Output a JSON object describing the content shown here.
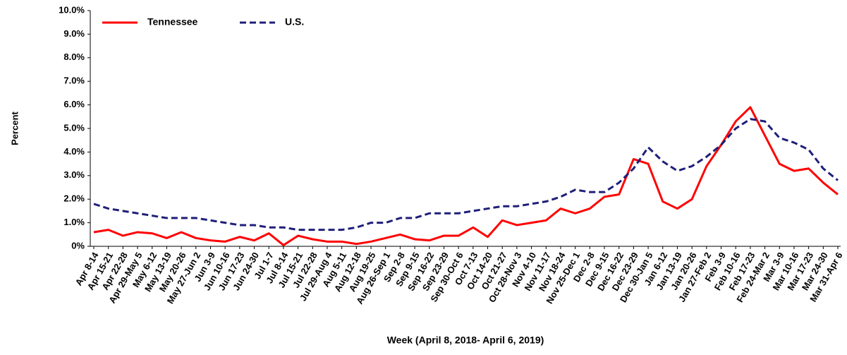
{
  "chart_data": {
    "type": "line",
    "x_label": "Week (April 8, 2018- April 6, 2019)",
    "y_label": "Percent",
    "categories": [
      "Apr 8-14",
      "Apr 15-21",
      "Apr 22-28",
      "Apr 29-May 5",
      "May 6-12",
      "May 13-19",
      "May 20-26",
      "May 27-Jun 2",
      "Jun 3-9",
      "Jun 10-16",
      "Jun 17-23",
      "Jun 24-30",
      "Jul 1-7",
      "Jul 8-14",
      "Jul 15-21",
      "Jul 22-28",
      "Jul 29-Aug 4",
      "Aug 5-11",
      "Aug 12-18",
      "Aug 19-25",
      "Aug 26-Sep 1",
      "Sep 2-8",
      "Sep 9-15",
      "Sep 16-22",
      "Sep 23-29",
      "Sep 30-Oct 6",
      "Oct 7-13",
      "Oct 14-20",
      "Oct 21-27",
      "Oct 28-Nov 3",
      "Nov 4-10",
      "Nov 11-17",
      "Nov 18-24",
      "Nov 25-Dec 1",
      "Dec 2-8",
      "Dec 9-15",
      "Dec 16-22",
      "Dec 23-29",
      "Dec 30-Jan 5",
      "Jan 6-12",
      "Jan 13-19",
      "Jan 20-26",
      "Jan 27-Feb 2",
      "Feb 3-9",
      "Feb 10-16",
      "Feb 17-23",
      "Feb 24-Mar 2",
      "Mar 3-9",
      "Mar 10-16",
      "Mar 17-23",
      "Mar 24-30",
      "Mar 31-Apr 6"
    ],
    "series": [
      {
        "name": "Tennessee",
        "color": "#ff0000",
        "dash": "solid",
        "values": [
          0.6,
          0.7,
          0.45,
          0.6,
          0.55,
          0.35,
          0.6,
          0.35,
          0.25,
          0.2,
          0.4,
          0.25,
          0.55,
          0.05,
          0.45,
          0.3,
          0.2,
          0.2,
          0.1,
          0.2,
          0.35,
          0.5,
          0.3,
          0.25,
          0.45,
          0.45,
          0.8,
          0.4,
          1.1,
          0.9,
          1.0,
          1.1,
          1.6,
          1.4,
          1.6,
          2.1,
          2.2,
          3.7,
          3.5,
          1.9,
          1.6,
          2.0,
          3.4,
          4.3,
          5.3,
          5.9,
          4.7,
          3.5,
          3.2,
          3.3,
          2.7,
          2.2
        ]
      },
      {
        "name": "U.S.",
        "color": "#1f1f7a",
        "dash": "dashed",
        "values": [
          1.8,
          1.6,
          1.5,
          1.4,
          1.3,
          1.2,
          1.2,
          1.2,
          1.1,
          1.0,
          0.9,
          0.9,
          0.8,
          0.8,
          0.7,
          0.7,
          0.7,
          0.7,
          0.8,
          1.0,
          1.0,
          1.2,
          1.2,
          1.4,
          1.4,
          1.4,
          1.5,
          1.6,
          1.7,
          1.7,
          1.8,
          1.9,
          2.1,
          2.4,
          2.3,
          2.3,
          2.7,
          3.3,
          4.2,
          3.6,
          3.2,
          3.4,
          3.8,
          4.3,
          5.0,
          5.4,
          5.3,
          4.6,
          4.4,
          4.1,
          3.3,
          2.8
        ]
      }
    ],
    "ylim": [
      0,
      10
    ],
    "yticks": [
      {
        "value": 0,
        "label": "0%"
      },
      {
        "value": 1,
        "label": "1.0%"
      },
      {
        "value": 2,
        "label": "2.0%"
      },
      {
        "value": 3,
        "label": "3.0%"
      },
      {
        "value": 4,
        "label": "4.0%"
      },
      {
        "value": 5,
        "label": "5.0%"
      },
      {
        "value": 6,
        "label": "6.0%"
      },
      {
        "value": 7,
        "label": "7.0%"
      },
      {
        "value": 8,
        "label": "8.0%"
      },
      {
        "value": 9,
        "label": "9.0%"
      },
      {
        "value": 10,
        "label": "10.0%"
      }
    ],
    "grid": false,
    "legend_position": "top-left"
  }
}
